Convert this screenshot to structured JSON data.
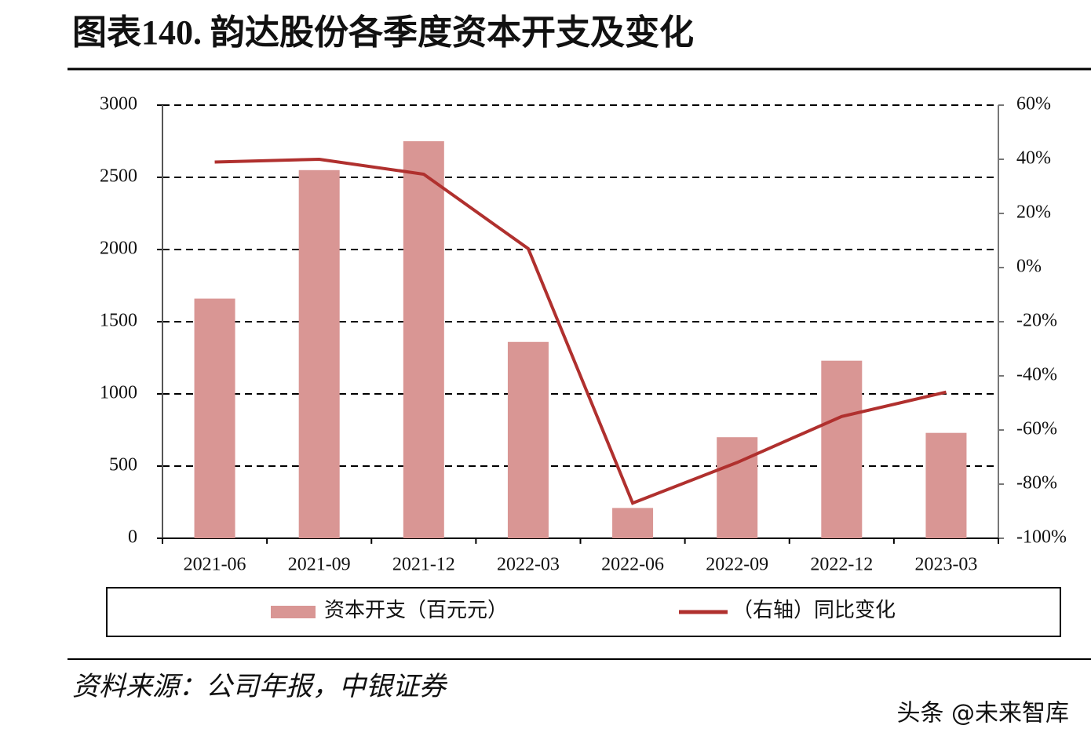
{
  "chart_data": {
    "type": "bar",
    "title": "图表140. 韵达股份各季度资本开支及变化",
    "categories": [
      "2021-06",
      "2021-09",
      "2021-12",
      "2022-03",
      "2022-06",
      "2022-09",
      "2022-12",
      "2023-03"
    ],
    "series": [
      {
        "name": "资本开支（百元元）",
        "type": "bar",
        "color": "#d99694",
        "values": [
          1660,
          2550,
          2750,
          1360,
          210,
          700,
          1230,
          730
        ]
      },
      {
        "name": "（右轴）同比变化",
        "type": "line",
        "axis": "y2",
        "color": "#b0302e",
        "values": [
          39,
          40,
          34.5,
          7,
          -87,
          -72,
          -55,
          -46
        ]
      }
    ],
    "ylim": [
      0,
      3000
    ],
    "yticks": [
      0,
      500,
      1000,
      1500,
      2000,
      2500,
      3000
    ],
    "y2lim": [
      -100,
      60
    ],
    "y2ticks": [
      {
        "value": -100,
        "label": "-100%"
      },
      {
        "value": -80,
        "label": "-80%"
      },
      {
        "value": -60,
        "label": "-60%"
      },
      {
        "value": -40,
        "label": "-40%"
      },
      {
        "value": -20,
        "label": "-20%"
      },
      {
        "value": 0,
        "label": "0%"
      },
      {
        "value": 20,
        "label": "20%"
      },
      {
        "value": 40,
        "label": "40%"
      },
      {
        "value": 60,
        "label": "60%"
      }
    ],
    "grid": true,
    "legend": "bottom",
    "source": "资料来源：公司年报，中银证券"
  },
  "watermark": "头条 @未来智库"
}
